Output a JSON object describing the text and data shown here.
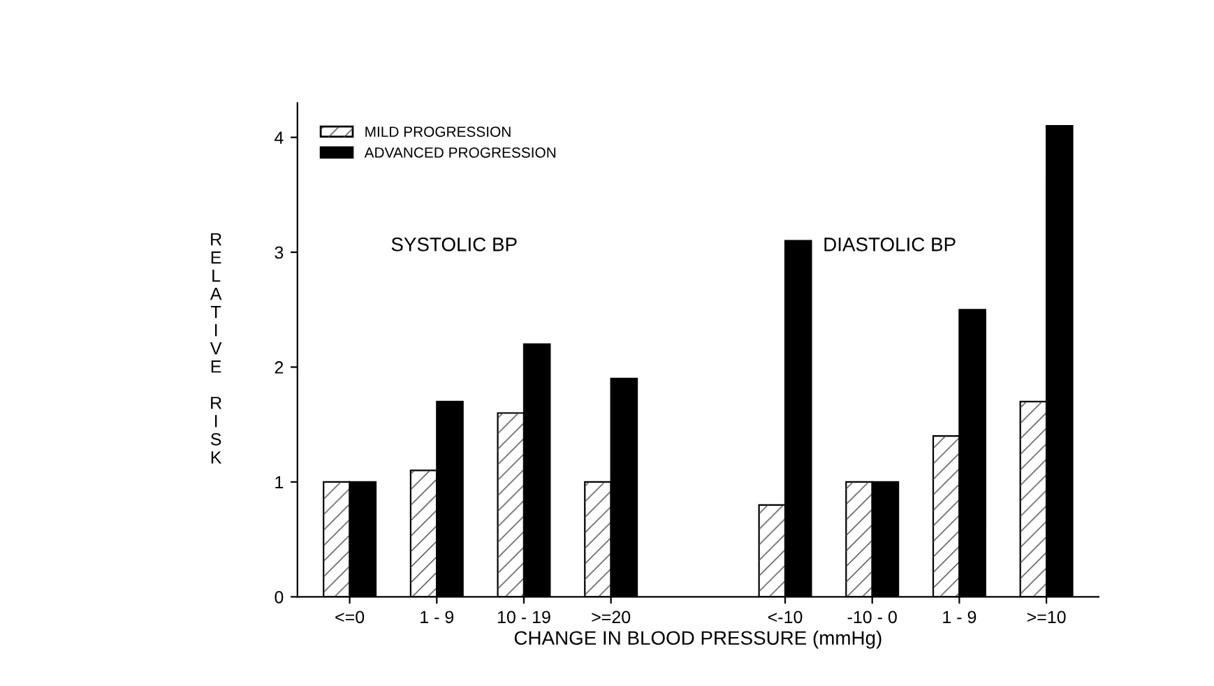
{
  "chart_data": {
    "type": "bar",
    "xlabel": "CHANGE IN BLOOD PRESSURE (mmHg)",
    "ylabel": "RELATIVE RISK",
    "categories": [
      "<=0",
      "1 - 9",
      "10 - 19",
      ">=20",
      null,
      "<-10",
      "-10 - 0",
      "1 - 9",
      ">=10"
    ],
    "series": [
      {
        "name": "MILD PROGRESSION",
        "color": "#ffffff",
        "values": [
          1.0,
          1.1,
          1.6,
          1.0,
          null,
          0.8,
          1.0,
          1.4,
          1.7
        ]
      },
      {
        "name": "ADVANCED PROGRESSION",
        "color": "#000000",
        "values": [
          1.0,
          1.7,
          2.2,
          1.9,
          null,
          3.1,
          1.0,
          2.5,
          4.1
        ]
      }
    ],
    "ylim": [
      0,
      4.3
    ],
    "yticks": [
      0,
      1,
      2,
      3,
      4
    ],
    "grid": false,
    "legend": "top left",
    "annotations": [
      "SYSTOLIC BP",
      "DIASTOLIC BP"
    ]
  }
}
